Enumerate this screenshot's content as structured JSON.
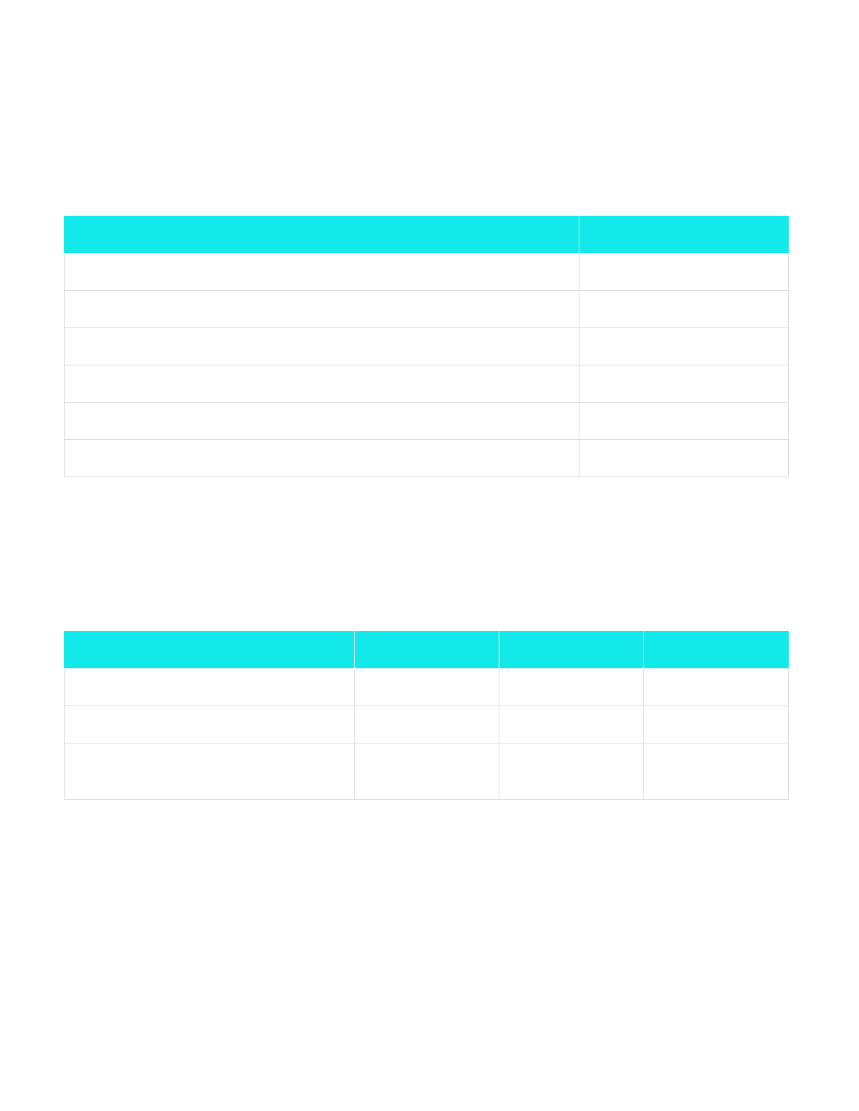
{
  "colors": {
    "header_fill": "#14e9ea",
    "grid_line": "#dadada",
    "page_background": "#ffffff"
  },
  "tables": [
    {
      "headers": [
        "",
        ""
      ],
      "rows": [
        [
          "",
          ""
        ],
        [
          "",
          ""
        ],
        [
          "",
          ""
        ],
        [
          "",
          ""
        ],
        [
          "",
          ""
        ],
        [
          "",
          ""
        ]
      ]
    },
    {
      "headers": [
        "",
        "",
        "",
        ""
      ],
      "rows": [
        [
          "",
          "",
          "",
          ""
        ],
        [
          "",
          "",
          "",
          ""
        ],
        [
          "",
          "",
          "",
          ""
        ]
      ]
    }
  ]
}
